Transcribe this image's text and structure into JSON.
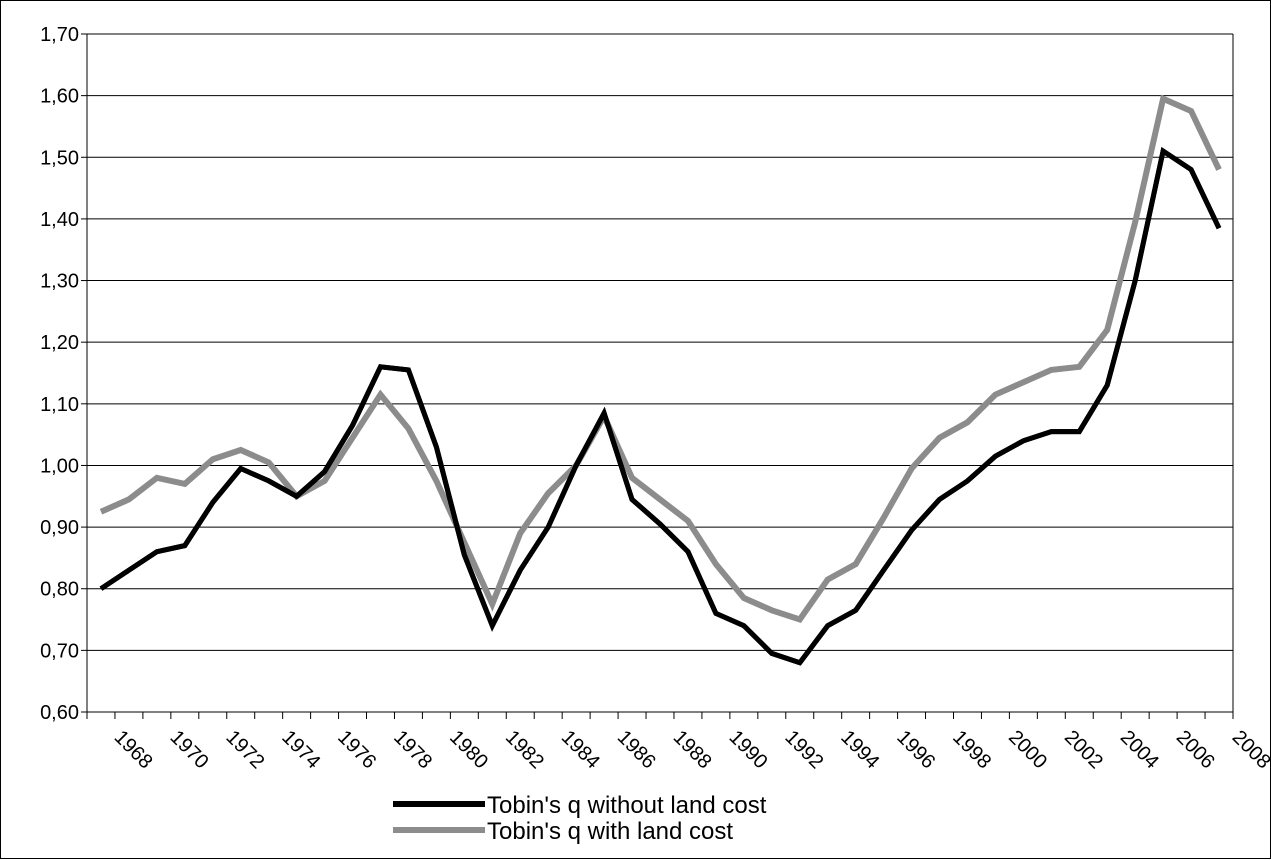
{
  "chart_data": {
    "type": "line",
    "title": "",
    "xlabel": "",
    "ylabel": "",
    "ylim": [
      0.6,
      1.7
    ],
    "yticks": [
      "0,60",
      "0,70",
      "0,80",
      "0,90",
      "1,00",
      "1,10",
      "1,20",
      "1,30",
      "1,40",
      "1,50",
      "1,60",
      "1,70"
    ],
    "xticks": [
      "1968",
      "1970",
      "1972",
      "1974",
      "1976",
      "1978",
      "1980",
      "1982",
      "1984",
      "1986",
      "1988",
      "1990",
      "1992",
      "1994",
      "1996",
      "1998",
      "2000",
      "2002",
      "2004",
      "2006",
      "2008"
    ],
    "x": [
      1967,
      1968,
      1969,
      1970,
      1971,
      1972,
      1973,
      1974,
      1975,
      1976,
      1977,
      1978,
      1979,
      1980,
      1981,
      1982,
      1983,
      1984,
      1985,
      1986,
      1987,
      1988,
      1989,
      1990,
      1991,
      1992,
      1993,
      1994,
      1995,
      1996,
      1997,
      1998,
      1999,
      2000,
      2001,
      2002,
      2003,
      2004,
      2005,
      2006,
      2007
    ],
    "grid": true,
    "legend_position": "bottom-center",
    "series": [
      {
        "name": "Tobin's q without land cost",
        "color": "#000000",
        "values": [
          0.8,
          0.83,
          0.86,
          0.87,
          0.94,
          0.995,
          0.975,
          0.95,
          0.99,
          1.065,
          1.16,
          1.155,
          1.03,
          0.855,
          0.74,
          0.83,
          0.9,
          1.0,
          1.085,
          0.945,
          0.905,
          0.86,
          0.76,
          0.74,
          0.695,
          0.68,
          0.74,
          0.765,
          0.83,
          0.895,
          0.945,
          0.975,
          1.015,
          1.04,
          1.055,
          1.055,
          1.13,
          1.3,
          1.51,
          1.48,
          1.385
        ]
      },
      {
        "name": "Tobin's q with land cost",
        "color": "#8c8c8c",
        "values": [
          0.925,
          0.945,
          0.98,
          0.97,
          1.01,
          1.025,
          1.005,
          0.95,
          0.975,
          1.045,
          1.115,
          1.06,
          0.975,
          0.875,
          0.775,
          0.89,
          0.955,
          1.0,
          1.08,
          0.98,
          0.945,
          0.91,
          0.84,
          0.785,
          0.765,
          0.75,
          0.815,
          0.84,
          0.915,
          0.995,
          1.045,
          1.07,
          1.115,
          1.135,
          1.155,
          1.16,
          1.22,
          1.395,
          1.595,
          1.575,
          1.48
        ]
      }
    ]
  }
}
